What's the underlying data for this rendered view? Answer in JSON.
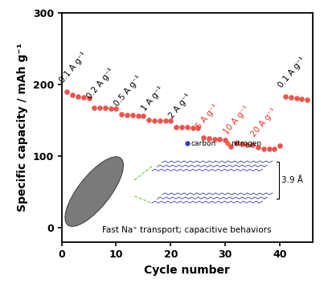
{
  "chart_data": {
    "type": "scatter",
    "xlabel": "Cycle number",
    "ylabel": "Specific capacity / mAh g⁻¹",
    "x": [
      1,
      2,
      3,
      4,
      5,
      6,
      7,
      8,
      9,
      10,
      11,
      12,
      13,
      14,
      15,
      16,
      17,
      18,
      19,
      20,
      21,
      22,
      23,
      24,
      25,
      26,
      27,
      28,
      29,
      30,
      31,
      32,
      33,
      34,
      35,
      36,
      37,
      38,
      39,
      40,
      41,
      42,
      43,
      44,
      45
    ],
    "values": [
      190,
      185,
      183,
      182,
      181,
      168,
      167,
      167,
      166,
      166,
      158,
      157,
      157,
      156,
      156,
      151,
      150,
      150,
      149,
      149,
      141,
      140,
      140,
      139,
      139,
      126,
      125,
      124,
      124,
      123,
      113,
      118,
      117,
      116,
      116,
      112,
      110,
      110,
      110,
      115,
      183,
      182,
      181,
      180,
      179
    ],
    "color": "#e8554e",
    "marker": "o",
    "xlim": [
      0,
      46
    ],
    "xticks": [
      0,
      10,
      20,
      30,
      40
    ],
    "ylim": [
      -20,
      300
    ],
    "yticks": [
      0,
      100,
      200,
      300
    ],
    "annotations": [
      {
        "text": "0.1 A g⁻¹",
        "color": "#000000"
      },
      {
        "text": "0.2 A g⁻¹",
        "color": "#000000"
      },
      {
        "text": "0.5 A g⁻¹",
        "color": "#000000"
      },
      {
        "text": "1 A g⁻¹",
        "color": "#000000"
      },
      {
        "text": "2 A g⁻¹",
        "color": "#000000"
      },
      {
        "text": "5 A g⁻¹",
        "color": "#e8332a"
      },
      {
        "text": "10 A g⁻¹",
        "color": "#e8332a"
      },
      {
        "text": "20 A g⁻¹",
        "color": "#e8332a"
      },
      {
        "text": "0.1 A g⁻¹",
        "color": "#000000"
      }
    ],
    "inset": {
      "caption": "Fast Na⁺ transport; capacitive behaviors",
      "legend": [
        {
          "text": "carbon",
          "color": "#3b3bb3"
        },
        {
          "text": "nitrogen",
          "color": "#e8703a"
        }
      ],
      "spacing": "3.9 Å"
    }
  }
}
